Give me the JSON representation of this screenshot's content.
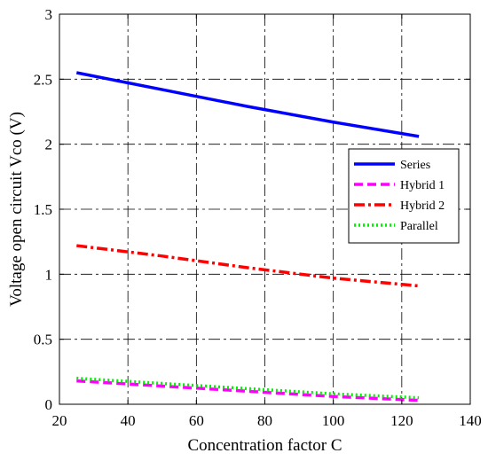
{
  "chart_data": {
    "type": "line",
    "xlabel": "Concentration factor C",
    "ylabel": "Voltage open circuit Vco (V)",
    "xlim": [
      20,
      140
    ],
    "ylim": [
      0,
      3
    ],
    "xticks": [
      20,
      40,
      60,
      80,
      100,
      120,
      140
    ],
    "yticks": [
      0,
      0.5,
      1,
      1.5,
      2,
      2.5,
      3
    ],
    "xtick_labels": [
      "20",
      "40",
      "60",
      "80",
      "100",
      "120",
      "140"
    ],
    "ytick_labels": [
      "0",
      "0.5",
      "1",
      "1.5",
      "2",
      "2.5",
      "3"
    ],
    "grid": true,
    "legend_position": "right",
    "series": [
      {
        "name": "Series",
        "color": "#0000ff",
        "dash": "solid",
        "x": [
          25,
          50,
          75,
          100,
          125
        ],
        "y": [
          2.55,
          2.42,
          2.29,
          2.17,
          2.06
        ]
      },
      {
        "name": "Hybrid 1",
        "color": "#ff00ff",
        "dash": "dashed",
        "x": [
          25,
          50,
          75,
          100,
          125
        ],
        "y": [
          0.18,
          0.14,
          0.1,
          0.06,
          0.03
        ]
      },
      {
        "name": "Hybrid 2",
        "color": "#ff0000",
        "dash": "dashdot",
        "x": [
          25,
          50,
          75,
          100,
          125
        ],
        "y": [
          1.22,
          1.14,
          1.05,
          0.97,
          0.91
        ]
      },
      {
        "name": "Parallel",
        "color": "#00ee00",
        "dash": "dotted",
        "x": [
          25,
          50,
          75,
          100,
          125
        ],
        "y": [
          0.2,
          0.16,
          0.12,
          0.08,
          0.05
        ]
      }
    ]
  }
}
